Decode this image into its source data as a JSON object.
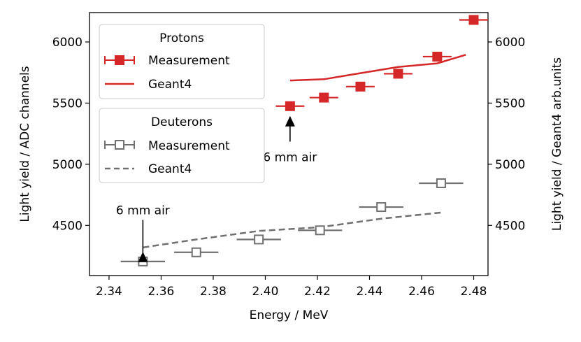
{
  "chart_data": {
    "type": "scatter",
    "xlabel": "Energy / MeV",
    "ylabel": "Light yield / ADC channels",
    "ylabel_right": "Light yield / Geant4 arb.units",
    "xlim": [
      2.3325,
      2.4855
    ],
    "ylim": [
      4090,
      6240
    ],
    "xticks": [
      2.34,
      2.36,
      2.38,
      2.4,
      2.42,
      2.44,
      2.46,
      2.48
    ],
    "xtick_labels": [
      "2.34",
      "2.36",
      "2.38",
      "2.40",
      "2.42",
      "2.44",
      "2.46",
      "2.48"
    ],
    "yticks": [
      4500,
      5000,
      5500,
      6000
    ],
    "ytick_labels": [
      "4500",
      "5000",
      "5500",
      "6000"
    ],
    "yticks_right": [
      4500,
      5000,
      5500,
      6000
    ],
    "ytick_labels_right": [
      "4500",
      "5000",
      "5500",
      "6000"
    ],
    "legends": [
      {
        "title": "Protons",
        "placement": "top-left",
        "entries": [
          "Measurement",
          "Geant4"
        ]
      },
      {
        "title": "Deuterons",
        "placement": "upper-left",
        "entries": [
          "Measurement",
          "Geant4"
        ]
      }
    ],
    "series": [
      {
        "name": "Protons Measurement",
        "kind": "markers",
        "marker": "filled-square",
        "color": "#d62728",
        "x": [
          2.4095,
          2.4225,
          2.4365,
          2.451,
          2.466,
          2.48
        ],
        "y": [
          5475,
          5545,
          5635,
          5740,
          5880,
          6180
        ],
        "xerr": [
          0.0055,
          0.0055,
          0.0055,
          0.0055,
          0.0055,
          0.0055
        ]
      },
      {
        "name": "Protons Geant4",
        "kind": "line",
        "style": "solid",
        "color": "#d62728",
        "x": [
          2.4095,
          2.4225,
          2.4365,
          2.451,
          2.466,
          2.477
        ],
        "y": [
          5685,
          5695,
          5745,
          5795,
          5825,
          5895
        ]
      },
      {
        "name": "Deuterons Measurement",
        "kind": "markers",
        "marker": "open-square",
        "color": "#707070",
        "x": [
          2.353,
          2.3735,
          2.3975,
          2.421,
          2.4445,
          2.4675
        ],
        "y": [
          4205,
          4280,
          4385,
          4460,
          4650,
          4845
        ],
        "xerr": [
          0.0085,
          0.0085,
          0.0085,
          0.0085,
          0.0085,
          0.0085
        ]
      },
      {
        "name": "Deuterons Geant4",
        "kind": "line",
        "style": "dashed",
        "color": "#707070",
        "x": [
          2.353,
          2.3735,
          2.3975,
          2.421,
          2.4445,
          2.4675
        ],
        "y": [
          4320,
          4385,
          4455,
          4485,
          4555,
          4605
        ]
      }
    ],
    "annotations": [
      {
        "text": "6 mm air",
        "arrow_x": 2.4095,
        "arrow_y_tip": 5395,
        "arrow_y_tail": 5185
      },
      {
        "text": "6 mm air",
        "arrow_x": 2.353,
        "arrow_y_tip": 4285,
        "arrow_y_tail": 4545
      }
    ]
  }
}
